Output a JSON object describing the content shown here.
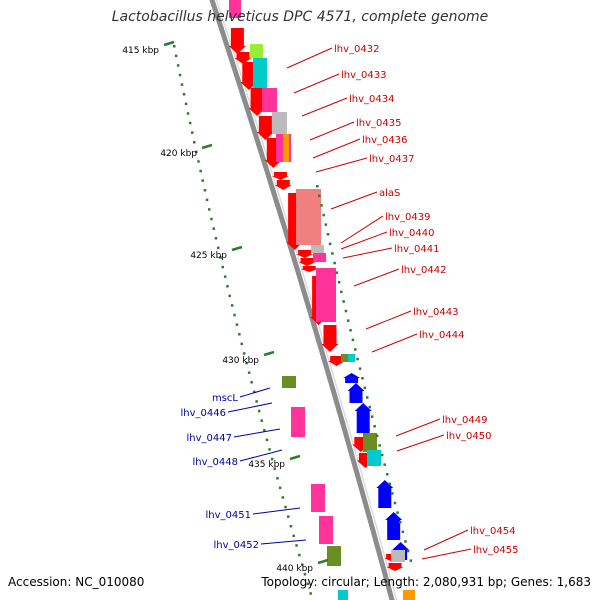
{
  "title": "Lactobacillus helveticus DPC 4571, complete genome",
  "accession": "Accession: NC_010080",
  "summary": "Topology: circular; Length: 2,080,931 bp; Genes: 1,683",
  "colors": {
    "backbone": "#8c8c8c",
    "forward_gene": "#ff0000",
    "reverse_gene": "#0000ff",
    "forward_label": "#cc0000",
    "reverse_label": "#0000aa",
    "tick": "#2e7d2e",
    "cog_pink": "#ff3399",
    "cog_cyan": "#00cccc",
    "cog_lime": "#99ee33",
    "cog_olive": "#6b8e23",
    "cog_gray": "#bbbbbb",
    "cog_salmon": "#f08080"
  },
  "ticks": [
    "415 kbp",
    "420 kbp",
    "425 kbp",
    "430 kbp",
    "435 kbp",
    "440 kbp"
  ],
  "forward_labels": [
    "lhv_0432",
    "lhv_0433",
    "lhv_0434",
    "lhv_0435",
    "lhv_0436",
    "lhv_0437",
    "alaS",
    "lhv_0439",
    "lhv_0440",
    "lhv_0441",
    "lhv_0442",
    "lhv_0443",
    "lhv_0444",
    "lhv_0449",
    "lhv_0450",
    "lhv_0454",
    "lhv_0455"
  ],
  "reverse_labels": [
    "mscL",
    "lhv_0446",
    "lhv_0447",
    "lhv_0448",
    "lhv_0451",
    "lhv_0452"
  ]
}
